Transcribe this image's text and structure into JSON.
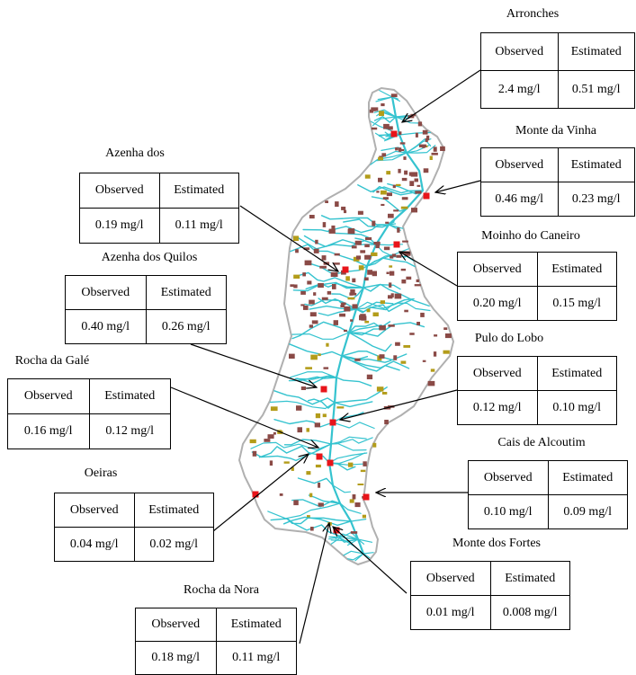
{
  "headers": {
    "observed": "Observed",
    "estimated": "Estimated"
  },
  "stations": [
    {
      "id": "arronches",
      "name": "Arronches",
      "observed": "2.4 mg/l",
      "estimated": "0.51 mg/l"
    },
    {
      "id": "monte-da-vinha",
      "name": "Monte da Vinha",
      "observed": "0.46 mg/l",
      "estimated": "0.23 mg/l"
    },
    {
      "id": "azenha-dos",
      "name": "Azenha dos",
      "observed": "0.19 mg/l",
      "estimated": "0.11 mg/l"
    },
    {
      "id": "moinho-do-caneiro",
      "name": "Moinho do Caneiro",
      "observed": "0.20 mg/l",
      "estimated": "0.15 mg/l"
    },
    {
      "id": "azenha-dos-quilos",
      "name": "Azenha dos Quilos",
      "observed": "0.40 mg/l",
      "estimated": "0.26 mg/l"
    },
    {
      "id": "pulo-do-lobo",
      "name": "Pulo do Lobo",
      "observed": "0.12 mg/l",
      "estimated": "0.10 mg/l"
    },
    {
      "id": "rocha-da-gale",
      "name": "Rocha da Galé",
      "observed": "0.16 mg/l",
      "estimated": "0.12 mg/l"
    },
    {
      "id": "cais-de-alcoutim",
      "name": "Cais de Alcoutim",
      "observed": "0.10 mg/l",
      "estimated": "0.09 mg/l"
    },
    {
      "id": "oeiras",
      "name": "Oeiras",
      "observed": "0.04 mg/l",
      "estimated": "0.02 mg/l"
    },
    {
      "id": "monte-dos-fortes",
      "name": "Monte dos Fortes",
      "observed": "0.01 mg/l",
      "estimated": "0.008 mg/l"
    },
    {
      "id": "rocha-da-nora",
      "name": "Rocha da Nora",
      "observed": "0.18 mg/l",
      "estimated": "0.11 mg/l"
    }
  ],
  "colors": {
    "basin_outline": "#b0b0b0",
    "river": "#35c3cf",
    "land_use_brown": "#8a4a46",
    "land_use_olive": "#b39c1a",
    "station_marker": "#e8141a"
  }
}
